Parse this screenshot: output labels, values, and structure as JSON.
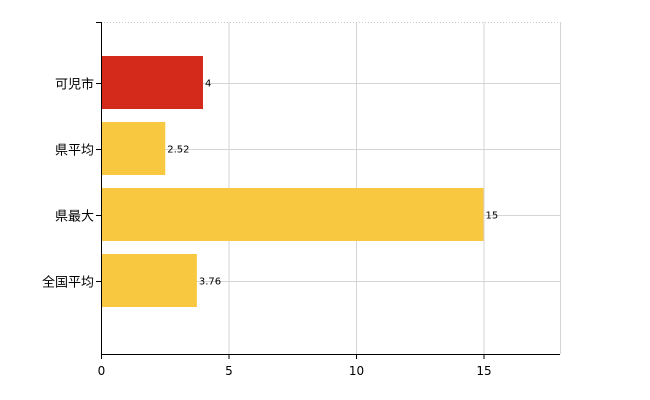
{
  "chart_data": {
    "type": "bar",
    "orientation": "horizontal",
    "categories": [
      "可児市",
      "県平均",
      "県最大",
      "全国平均"
    ],
    "values": [
      4,
      2.52,
      15,
      3.76
    ],
    "data_labels": [
      "4",
      "2.52",
      "15",
      "3.76"
    ],
    "colors": [
      "#d42a1c",
      "#f7c840",
      "#f7c840",
      "#f7c840"
    ],
    "xlim": [
      0,
      18
    ],
    "xticks": [
      0,
      5,
      10,
      15
    ],
    "xtick_labels": [
      "0",
      "5",
      "10",
      "15"
    ],
    "grid": true,
    "legend": "none"
  }
}
